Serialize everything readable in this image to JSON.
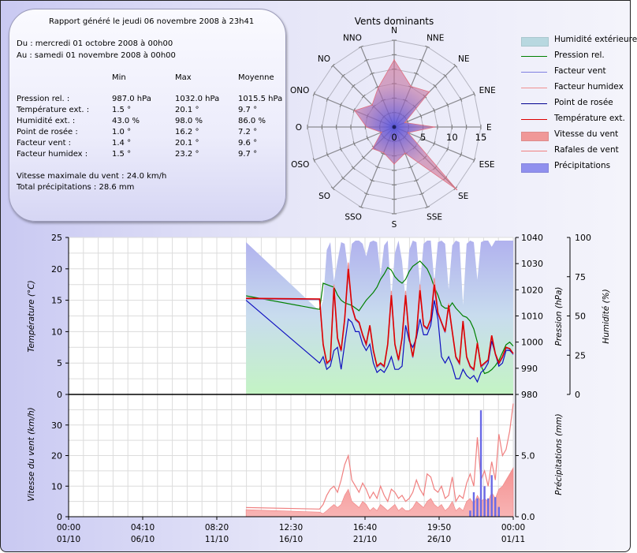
{
  "report": {
    "title": "Rapport généré le jeudi 06 novembre 2008 à 23h41",
    "from": "Du : mercredi 01 octobre 2008 à 00h00",
    "to": "Au : samedi 01 novembre 2008 à 00h00",
    "columns": [
      "Min",
      "Max",
      "Moyenne"
    ],
    "rows": [
      {
        "label": "Pression rel. :",
        "min": "987.0 hPa",
        "max": "1032.0 hPa",
        "avg": "1015.5 hPa"
      },
      {
        "label": "Température ext. :",
        "min": "1.5 °",
        "max": "20.1 °",
        "avg": "9.7 °"
      },
      {
        "label": "Humidité ext. :",
        "min": "43.0 %",
        "max": "98.0 %",
        "avg": "86.0 %"
      },
      {
        "label": "Point de rosée :",
        "min": "1.0 °",
        "max": "16.2 °",
        "avg": "7.2 °"
      },
      {
        "label": "Facteur vent :",
        "min": "1.4 °",
        "max": "20.1 °",
        "avg": "9.6 °"
      },
      {
        "label": "Facteur humidex :",
        "min": "1.5 °",
        "max": "23.2 °",
        "avg": "9.7 °"
      }
    ],
    "max_wind": "Vitesse maximale du vent : 24.0 km/h",
    "total_rain": "Total précipitations : 28.6 mm"
  },
  "legend": [
    {
      "label": "Humidité extérieure",
      "kind": "area",
      "color": "#b8d8e0"
    },
    {
      "label": "Pression rel.",
      "kind": "line",
      "color": "#008000"
    },
    {
      "label": "Facteur vent",
      "kind": "line",
      "color": "#8080e0"
    },
    {
      "label": "Facteur humidex",
      "kind": "line",
      "color": "#f09090"
    },
    {
      "label": "Point de rosée",
      "kind": "line",
      "color": "#000090"
    },
    {
      "label": "Température ext.",
      "kind": "line",
      "color": "#dd0000"
    },
    {
      "label": "Vitesse du vent",
      "kind": "area",
      "color": "#f09898"
    },
    {
      "label": "Rafales de vent",
      "kind": "line",
      "color": "#f08080"
    },
    {
      "label": "Précipitations",
      "kind": "area",
      "color": "#9090ee"
    }
  ],
  "chart_data": [
    {
      "type": "radar",
      "title": "Vents dominants",
      "directions": [
        "N",
        "NNE",
        "NE",
        "ENE",
        "E",
        "ESE",
        "SE",
        "SSE",
        "S",
        "SSO",
        "SO",
        "OSO",
        "O",
        "ONO",
        "NO",
        "NNO"
      ],
      "values": [
        11.6,
        7.6,
        8.6,
        2.0,
        7.0,
        2.6,
        15.3,
        4.9,
        6.4,
        4.8,
        5.3,
        2.4,
        4.8,
        7.4,
        5.4,
        7.3
      ],
      "radial_ticks": [
        "0",
        "5",
        "10",
        "15"
      ],
      "rmax": 15,
      "fill_colors": [
        "#e06070",
        "#6060e0"
      ]
    },
    {
      "type": "line",
      "x_ticks": [
        {
          "time": "00:00",
          "date": "01/10"
        },
        {
          "time": "04:10",
          "date": "06/10"
        },
        {
          "time": "08:20",
          "date": "11/10"
        },
        {
          "time": "12:30",
          "date": "16/10"
        },
        {
          "time": "16:40",
          "date": "21/10"
        },
        {
          "time": "19:50",
          "date": "26/10"
        },
        {
          "time": "00:00",
          "date": "01/11"
        }
      ],
      "xlim": [
        "2008-10-01 00:00",
        "2008-11-01 00:00"
      ],
      "times": [
        "2008-10-13 09:00",
        "2008-10-18 12:00",
        "2008-10-18 18:00",
        "2008-10-19 00:00",
        "2008-10-19 06:00",
        "2008-10-19 12:00",
        "2008-10-19 18:00",
        "2008-10-20 00:00",
        "2008-10-20 06:00",
        "2008-10-20 12:00",
        "2008-10-20 18:00",
        "2008-10-21 00:00",
        "2008-10-21 06:00",
        "2008-10-21 12:00",
        "2008-10-21 18:00",
        "2008-10-22 00:00",
        "2008-10-22 06:00",
        "2008-10-22 12:00",
        "2008-10-22 18:00",
        "2008-10-23 00:00",
        "2008-10-23 06:00",
        "2008-10-23 12:00",
        "2008-10-23 18:00",
        "2008-10-24 00:00",
        "2008-10-24 06:00",
        "2008-10-24 12:00",
        "2008-10-24 18:00",
        "2008-10-25 00:00",
        "2008-10-25 06:00",
        "2008-10-25 12:00",
        "2008-10-25 18:00",
        "2008-10-26 00:00",
        "2008-10-26 06:00",
        "2008-10-26 12:00",
        "2008-10-26 18:00",
        "2008-10-27 00:00",
        "2008-10-27 06:00",
        "2008-10-27 12:00",
        "2008-10-27 18:00",
        "2008-10-28 00:00",
        "2008-10-28 06:00",
        "2008-10-28 12:00",
        "2008-10-28 18:00",
        "2008-10-29 00:00",
        "2008-10-29 06:00",
        "2008-10-29 12:00",
        "2008-10-29 18:00",
        "2008-10-30 00:00",
        "2008-10-30 06:00",
        "2008-10-30 12:00",
        "2008-10-30 18:00",
        "2008-10-31 00:00",
        "2008-10-31 06:00",
        "2008-10-31 12:00",
        "2008-10-31 18:00",
        "2008-11-01 00:00"
      ],
      "top": {
        "ylabel_left": "Température (°C)",
        "ylim_left": [
          0,
          25
        ],
        "yticks_left": [
          "0",
          "5",
          "10",
          "15",
          "20",
          "25"
        ],
        "ylabel_pressure": "Pression (hPa)",
        "ylim_pressure": [
          980,
          1040
        ],
        "yticks_pressure": [
          "980",
          "990",
          "1000",
          "1010",
          "1020",
          "1030",
          "1040"
        ],
        "ylabel_humidity": "Humidité (%)",
        "ylim_humidity": [
          0,
          100
        ],
        "yticks_humidity": [
          "0",
          "25",
          "50",
          "75",
          "100"
        ],
        "series": [
          {
            "name": "Humidité extérieure",
            "axis": "humidity",
            "values": [
              97,
              53,
              60,
              92,
              97,
              72,
              85,
              97,
              96,
              78,
              96,
              98,
              98,
              96,
              88,
              97,
              98,
              97,
              76,
              95,
              98,
              62,
              90,
              98,
              85,
              60,
              92,
              98,
              97,
              70,
              96,
              98,
              98,
              72,
              97,
              98,
              96,
              67,
              95,
              98,
              97,
              57,
              96,
              98,
              97,
              73,
              97,
              98,
              98,
              94,
              98,
              98,
              98,
              98,
              98,
              98
            ]
          },
          {
            "name": "Pression rel.",
            "axis": "pressure",
            "values": [
              1017.7,
              1012.5,
              1022.5,
              1022,
              1021.5,
              1021,
              1018,
              1016,
              1015,
              1014.5,
              1014,
              1013,
              1012,
              1014,
              1016,
              1017.5,
              1019,
              1021,
              1024,
              1026,
              1028.5,
              1027.5,
              1025,
              1023.5,
              1022.5,
              1024,
              1027,
              1029,
              1030,
              1031,
              1029.5,
              1028,
              1025,
              1021,
              1018,
              1014,
              1013,
              1013,
              1015,
              1013,
              1011.5,
              1010,
              1009.5,
              1008,
              1005,
              1000,
              991,
              988,
              988.5,
              989.5,
              991,
              993,
              996,
              999,
              1000,
              998.5
            ]
          },
          {
            "name": "Facteur vent",
            "axis": "temperature",
            "values": [
              15.2,
              15.1,
              7.8,
              4.8,
              5.3,
              16.8,
              8.8,
              6.8,
              11.8,
              19.9,
              13.8,
              11.8,
              11.3,
              9.3,
              7.8,
              10.8,
              6.8,
              4.3,
              4.8,
              4.3,
              7.8,
              15.6,
              7.8,
              5.3,
              8.8,
              15.6,
              8.8,
              5.8,
              9.3,
              16.4,
              10.8,
              10.3,
              11.8,
              17.3,
              12.8,
              11.3,
              9.8,
              14,
              9.8,
              5.8,
              4.8,
              11.5,
              5.8,
              4.3,
              3.8,
              8,
              4.3,
              4.8,
              5.3,
              9.2,
              6.3,
              4.8,
              5.8,
              7.3,
              7.1,
              6.3
            ]
          },
          {
            "name": "Facteur humidex",
            "axis": "temperature",
            "values": [
              15.3,
              15.2,
              8,
              5,
              5.5,
              17.5,
              9,
              7,
              12,
              21,
              14,
              12,
              11.5,
              9.5,
              8,
              11,
              7,
              4.5,
              5,
              4.5,
              8,
              16.5,
              8,
              5.5,
              9,
              16.5,
              9,
              6,
              9.5,
              17.5,
              11,
              10.5,
              12,
              18.5,
              13,
              11.5,
              10,
              14.5,
              10,
              6,
              5,
              11.7,
              6,
              4.5,
              4,
              8.2,
              4.5,
              5,
              5.5,
              9.4,
              6.5,
              5,
              6,
              7.5,
              7.3,
              6.5
            ]
          },
          {
            "name": "Point de rosée",
            "axis": "temperature",
            "values": [
              15.0,
              5.0,
              6,
              4,
              4.5,
              7,
              7.5,
              4,
              8,
              12,
              11.5,
              10,
              10,
              8,
              7,
              8,
              5,
              3.5,
              4,
              3.5,
              4.5,
              6,
              4,
              4,
              4.5,
              11,
              8.5,
              7.5,
              9,
              12,
              9.5,
              9.5,
              11,
              15,
              12,
              6,
              5,
              6,
              4.5,
              2.5,
              2.5,
              4,
              3,
              2.5,
              3,
              2,
              3.5,
              4,
              5,
              8.5,
              6.5,
              4.5,
              5,
              7,
              7,
              6.5
            ]
          },
          {
            "name": "Température ext.",
            "axis": "temperature",
            "values": [
              15.3,
              15.2,
              8,
              5,
              5.5,
              17,
              9,
              7,
              12,
              20,
              14,
              12,
              11.5,
              9.5,
              8,
              11,
              7,
              4.5,
              5,
              4.5,
              8,
              15.8,
              8,
              5.5,
              9,
              15.8,
              9,
              6,
              9.5,
              16.6,
              11,
              10.5,
              12,
              17.5,
              13,
              11.5,
              10,
              14.2,
              10,
              6,
              5,
              11.7,
              6,
              4.5,
              4,
              8.2,
              4.5,
              5,
              5.5,
              9.4,
              6.5,
              5,
              6,
              7.5,
              7.3,
              6.5
            ]
          }
        ]
      },
      "bottom": {
        "ylabel_left": "Vitesse du vent (km/h)",
        "ylim_left": [
          0,
          40
        ],
        "yticks_left": [
          "0",
          "10",
          "20",
          "30"
        ],
        "ylabel_right": "Précipitations (mm)",
        "ylim_right": [
          0,
          10
        ],
        "yticks_right": [
          "0.0",
          "5.0"
        ],
        "series": [
          {
            "name": "Vitesse du vent",
            "axis": "wind",
            "values": [
              2.3,
              1.5,
              1,
              2,
              3,
              4,
              3,
              4,
              7,
              9,
              5,
              4,
              3,
              5,
              4,
              2,
              3,
              2,
              4,
              3,
              2,
              3,
              4,
              2,
              3,
              2,
              2,
              3,
              5,
              4,
              3,
              5,
              6,
              4,
              3,
              4,
              2,
              3,
              5,
              2,
              3,
              2,
              5,
              6,
              4,
              7,
              5,
              6,
              5,
              8,
              6,
              9,
              10,
              12,
              14,
              16
            ]
          },
          {
            "name": "Rafales de vent",
            "axis": "wind",
            "values": [
              3,
              2.5,
              4,
              7,
              9,
              10,
              8,
              12,
              17,
              20,
              12,
              10,
              8,
              11,
              9,
              6,
              8,
              6,
              10,
              7,
              5,
              9,
              8,
              6,
              7,
              5,
              6,
              8,
              12,
              9,
              7,
              14,
              13,
              9,
              8,
              10,
              6,
              7,
              13,
              5,
              7,
              6,
              11,
              14,
              10,
              26,
              12,
              15,
              10,
              18,
              12,
              27,
              20,
              22,
              28,
              37
            ]
          },
          {
            "name": "Précipitations",
            "axis": "rain",
            "values": [
              0,
              0,
              0,
              0,
              0,
              0,
              0,
              0,
              0,
              0,
              0,
              0,
              0,
              0,
              0,
              0,
              0,
              0,
              0,
              0,
              0,
              0,
              0,
              0,
              0,
              0,
              0,
              0,
              0,
              0,
              0,
              0,
              0,
              0,
              0,
              0,
              0,
              0,
              0,
              0,
              0,
              0,
              0,
              0.5,
              2,
              1.5,
              8.7,
              2.5,
              1.5,
              3.4,
              1.6,
              0.8,
              0,
              0,
              0,
              0
            ]
          }
        ]
      }
    }
  ]
}
